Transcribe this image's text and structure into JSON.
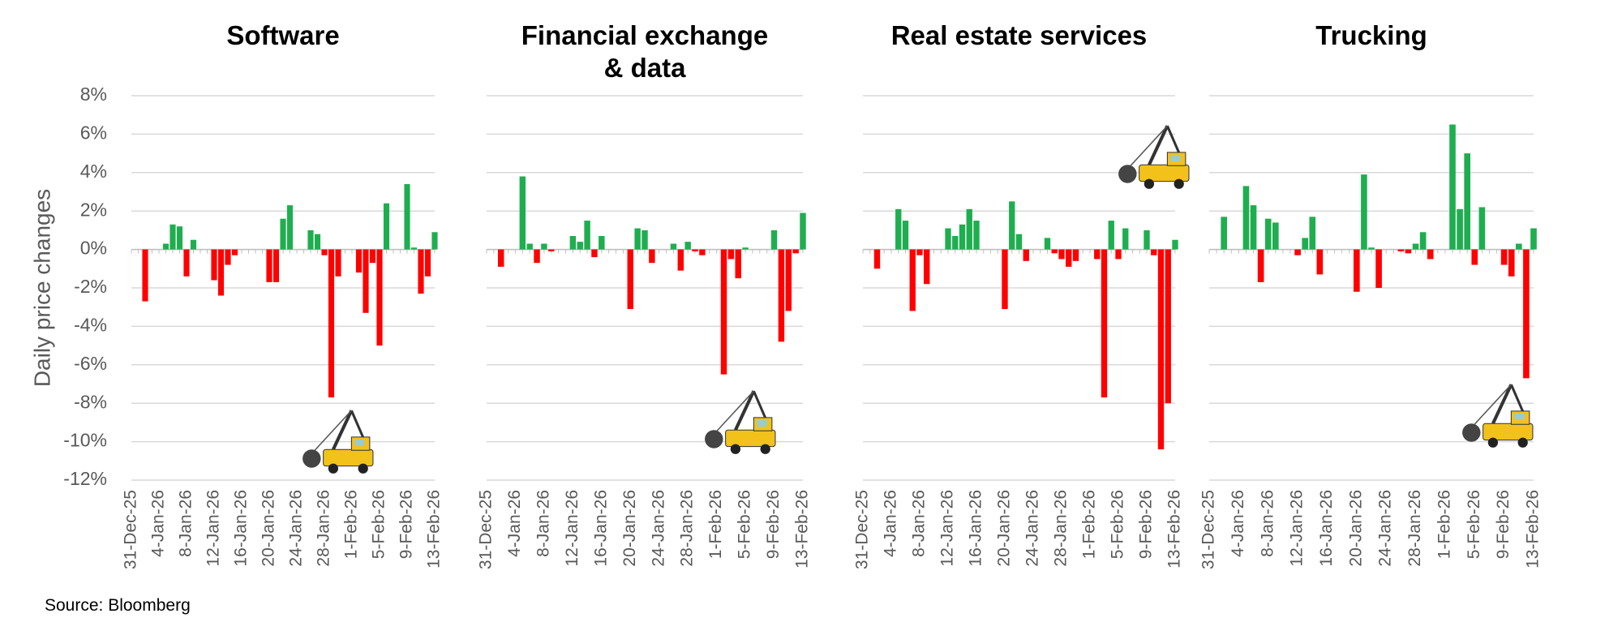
{
  "chart_data": [
    {
      "type": "bar",
      "title": "Software",
      "y_label": "Daily price changes",
      "categories": [
        "31-Dec-25",
        null,
        null,
        null,
        "4-Jan-26",
        null,
        null,
        null,
        "8-Jan-26",
        null,
        null,
        null,
        "12-Jan-26",
        null,
        null,
        null,
        "16-Jan-26",
        null,
        null,
        null,
        "20-Jan-26",
        null,
        null,
        null,
        "24-Jan-26",
        null,
        null,
        null,
        "28-Jan-26",
        null,
        null,
        null,
        "1-Feb-26",
        null,
        null,
        null,
        "5-Feb-26",
        null,
        null,
        null,
        "9-Feb-26",
        null,
        null,
        null,
        "13-Feb-26"
      ],
      "values": [
        null,
        null,
        -2.7,
        null,
        null,
        0.3,
        1.3,
        1.2,
        -1.4,
        0.5,
        null,
        null,
        -1.6,
        -2.4,
        -0.8,
        -0.3,
        null,
        null,
        null,
        null,
        -1.7,
        -1.7,
        1.6,
        2.3,
        null,
        null,
        1.0,
        0.8,
        -0.3,
        -7.7,
        -1.4,
        null,
        null,
        -1.2,
        -3.3,
        -0.7,
        -5.0,
        2.4,
        null,
        null,
        3.4,
        0.1,
        -2.3,
        -1.4,
        0.9
      ],
      "colors": {
        "positive": "#1fae4f",
        "negative": "#ff0000"
      },
      "ylim": [
        -12,
        8
      ],
      "yticks": [
        {
          "value": -12,
          "label": "-12%"
        },
        {
          "value": -10,
          "label": "-10%"
        },
        {
          "value": -8,
          "label": "-8%"
        },
        {
          "value": -6,
          "label": "-6%"
        },
        {
          "value": -4,
          "label": "-4%"
        },
        {
          "value": -2,
          "label": "-2%"
        },
        {
          "value": 0,
          "label": "0%"
        },
        {
          "value": 2,
          "label": "2%"
        },
        {
          "value": 4,
          "label": "4%"
        },
        {
          "value": 6,
          "label": "6%"
        },
        {
          "value": 8,
          "label": "8%"
        }
      ],
      "grid": true
    },
    {
      "type": "bar",
      "title": "Financial exchange\n& data",
      "categories": [
        "31-Dec-25",
        null,
        null,
        null,
        "4-Jan-26",
        null,
        null,
        null,
        "8-Jan-26",
        null,
        null,
        null,
        "12-Jan-26",
        null,
        null,
        null,
        "16-Jan-26",
        null,
        null,
        null,
        "20-Jan-26",
        null,
        null,
        null,
        "24-Jan-26",
        null,
        null,
        null,
        "28-Jan-26",
        null,
        null,
        null,
        "1-Feb-26",
        null,
        null,
        null,
        "5-Feb-26",
        null,
        null,
        null,
        "9-Feb-26",
        null,
        null,
        null,
        "13-Feb-26"
      ],
      "values": [
        null,
        null,
        -0.9,
        null,
        null,
        3.8,
        0.3,
        -0.7,
        0.3,
        -0.1,
        null,
        null,
        0.7,
        0.4,
        1.5,
        -0.4,
        0.7,
        null,
        null,
        null,
        -3.1,
        1.1,
        1.0,
        -0.7,
        null,
        null,
        0.3,
        -1.1,
        0.4,
        -0.1,
        -0.3,
        null,
        null,
        -6.5,
        -0.5,
        -1.5,
        0.1,
        null,
        null,
        null,
        1.0,
        -4.8,
        -3.2,
        -0.2,
        1.9
      ],
      "colors": {
        "positive": "#1fae4f",
        "negative": "#ff0000"
      },
      "ylim": [
        -12,
        8
      ],
      "yticks": [
        -12,
        -10,
        -8,
        -6,
        -4,
        -2,
        0,
        2,
        4,
        6,
        8
      ],
      "grid": true
    },
    {
      "type": "bar",
      "title": "Real estate services",
      "categories": [
        "31-Dec-25",
        null,
        null,
        null,
        "4-Jan-26",
        null,
        null,
        null,
        "8-Jan-26",
        null,
        null,
        null,
        "12-Jan-26",
        null,
        null,
        null,
        "16-Jan-26",
        null,
        null,
        null,
        "20-Jan-26",
        null,
        null,
        null,
        "24-Jan-26",
        null,
        null,
        null,
        "28-Jan-26",
        null,
        null,
        null,
        "1-Feb-26",
        null,
        null,
        null,
        "5-Feb-26",
        null,
        null,
        null,
        "9-Feb-26",
        null,
        null,
        null,
        "13-Feb-26"
      ],
      "values": [
        null,
        null,
        -1.0,
        null,
        null,
        2.1,
        1.5,
        -3.2,
        -0.3,
        -1.8,
        null,
        null,
        1.1,
        0.7,
        1.3,
        2.1,
        1.5,
        null,
        null,
        null,
        -3.1,
        2.5,
        0.8,
        -0.6,
        null,
        null,
        0.6,
        -0.2,
        -0.5,
        -0.9,
        -0.6,
        null,
        null,
        -0.5,
        -7.7,
        1.5,
        -0.5,
        1.1,
        null,
        null,
        1.0,
        -0.3,
        -10.4,
        -8.0,
        0.5
      ],
      "colors": {
        "positive": "#1fae4f",
        "negative": "#ff0000"
      },
      "ylim": [
        -12,
        8
      ],
      "yticks": [
        -12,
        -10,
        -8,
        -6,
        -4,
        -2,
        0,
        2,
        4,
        6,
        8
      ],
      "grid": true
    },
    {
      "type": "bar",
      "title": "Trucking",
      "categories": [
        "31-Dec-25",
        null,
        null,
        null,
        "4-Jan-26",
        null,
        null,
        null,
        "8-Jan-26",
        null,
        null,
        null,
        "12-Jan-26",
        null,
        null,
        null,
        "16-Jan-26",
        null,
        null,
        null,
        "20-Jan-26",
        null,
        null,
        null,
        "24-Jan-26",
        null,
        null,
        null,
        "28-Jan-26",
        null,
        null,
        null,
        "1-Feb-26",
        null,
        null,
        null,
        "5-Feb-26",
        null,
        null,
        null,
        "9-Feb-26",
        null,
        null,
        null,
        "13-Feb-26"
      ],
      "values": [
        null,
        null,
        1.7,
        null,
        null,
        3.3,
        2.3,
        -1.7,
        1.6,
        1.4,
        null,
        null,
        -0.3,
        0.6,
        1.7,
        -1.3,
        null,
        null,
        null,
        null,
        -2.2,
        3.9,
        0.1,
        -2.0,
        null,
        null,
        -0.1,
        -0.2,
        0.3,
        0.9,
        -0.5,
        null,
        null,
        6.5,
        2.1,
        5.0,
        -0.8,
        2.2,
        null,
        null,
        -0.8,
        -1.4,
        0.3,
        -6.7,
        1.1
      ],
      "colors": {
        "positive": "#1fae4f",
        "negative": "#ff0000"
      },
      "ylim": [
        -12,
        8
      ],
      "yticks": [
        -12,
        -10,
        -8,
        -6,
        -4,
        -2,
        0,
        2,
        4,
        6,
        8
      ],
      "grid": true
    }
  ],
  "source": "Source: Bloomberg"
}
